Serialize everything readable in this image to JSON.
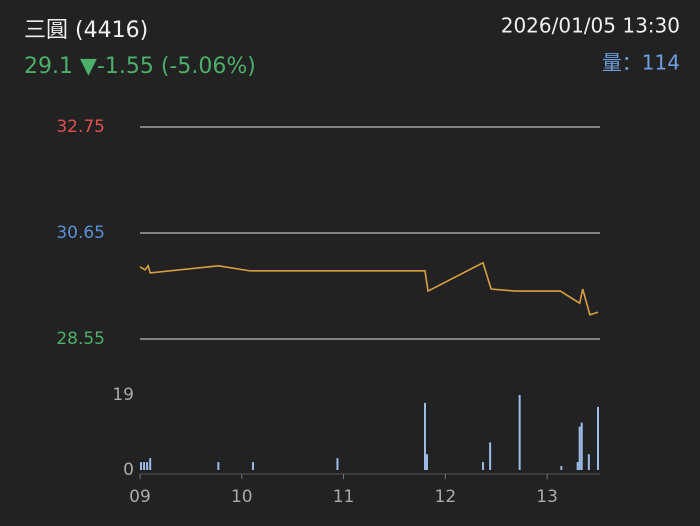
{
  "header": {
    "title": "三圓 (4416)",
    "price_line": "29.1 ▼-1.55 (-5.06%)",
    "datetime": "2026/01/05 13:30",
    "volume": "量：114"
  },
  "chart_data": [
    {
      "type": "line",
      "color": "#d9a040",
      "x": [
        9.0,
        9.05,
        9.08,
        9.1,
        9.77,
        10.08,
        11.8,
        11.83,
        12.37,
        12.45,
        12.68,
        13.13,
        13.32,
        13.35,
        13.42,
        13.5
      ],
      "values": [
        29.98,
        29.92,
        30.0,
        29.86,
        30.0,
        29.9,
        29.9,
        29.5,
        30.06,
        29.54,
        29.5,
        29.5,
        29.26,
        29.54,
        29.03,
        29.08
      ],
      "xlim": [
        9,
        13.5
      ],
      "ylim": [
        28.55,
        32.75
      ],
      "yticks": [
        28.55,
        30.65,
        32.75
      ],
      "ytick_colors": [
        "#4caf6a",
        "#5b8fd6",
        "#e05050"
      ],
      "grid": true
    },
    {
      "type": "bar",
      "color": "#9dbde8",
      "x": [
        9.01,
        9.04,
        9.07,
        9.1,
        9.77,
        10.11,
        10.94,
        11.8,
        11.82,
        12.37,
        12.44,
        12.73,
        13.14,
        13.3,
        13.32,
        13.34,
        13.41,
        13.5
      ],
      "values": [
        2,
        2,
        2,
        3,
        2,
        2,
        3,
        17,
        4,
        2,
        7,
        19,
        1,
        2,
        11,
        12,
        4,
        16
      ],
      "xlim": [
        9,
        13.5
      ],
      "ylim": [
        0,
        19
      ],
      "yticks": [
        0,
        19
      ],
      "xticks": [
        {
          "value": 9,
          "label": "09"
        },
        10,
        11,
        12,
        13
      ]
    }
  ]
}
